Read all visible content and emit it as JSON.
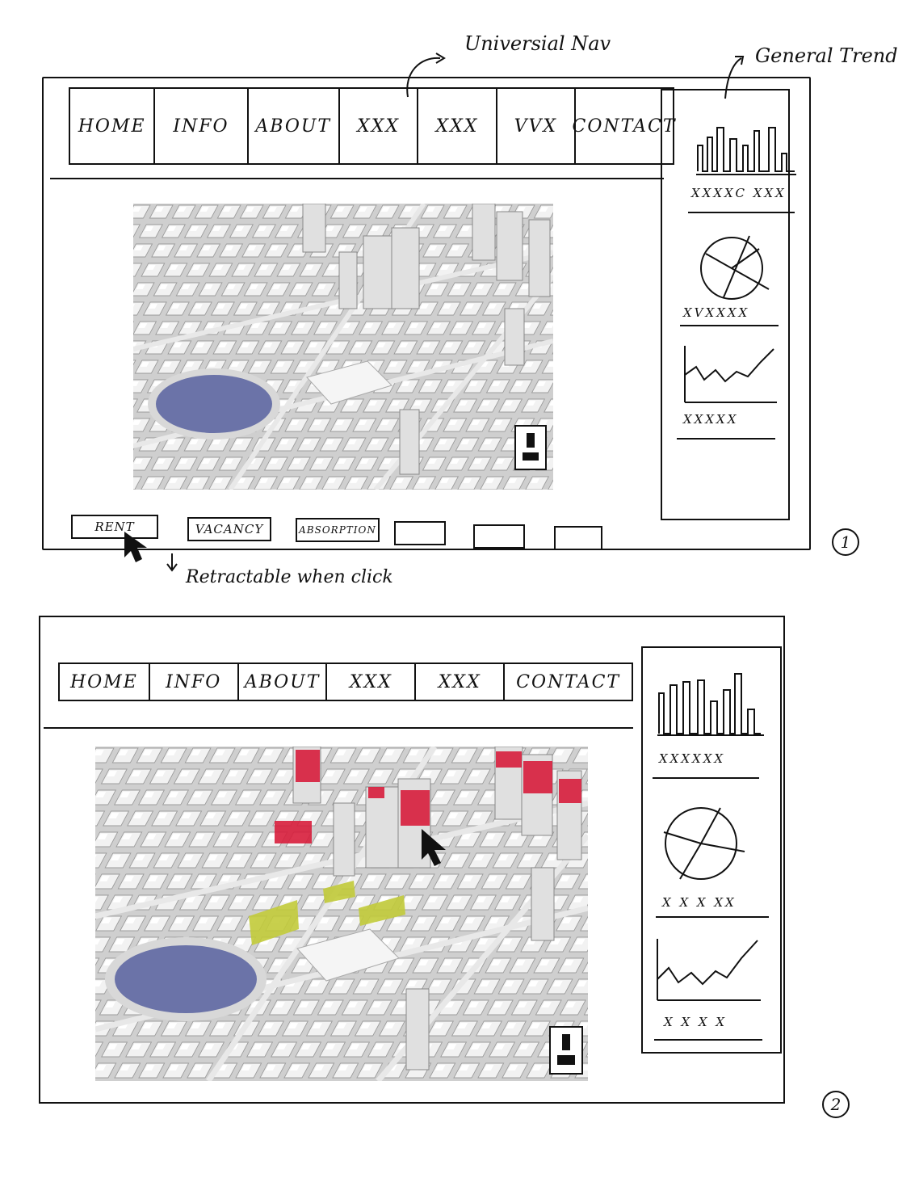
{
  "annotations": {
    "universal_nav": "Universial Nav",
    "general_trend": "General Trend",
    "retractable": "Retractable when click"
  },
  "sketch1": {
    "nav": [
      "HOME",
      "INFO",
      "ABOUT",
      "XXX",
      "XXX",
      "VVX",
      "CONTACT"
    ],
    "tabs": [
      "RENT",
      "VACANCY",
      "ABSORPTION",
      "",
      "",
      ""
    ],
    "trend_labels": [
      "XXXXC  XXX",
      "XVXXXX",
      "XXXXX"
    ],
    "page_number": "1"
  },
  "sketch2": {
    "nav": [
      "HOME",
      "INFO",
      "ABOUT",
      "XXX",
      "XXX",
      "CONTACT"
    ],
    "trend_labels": [
      "XXXXXX",
      "X X X XX",
      "X X X X"
    ],
    "page_number": "2"
  },
  "colors": {
    "ink": "#111111",
    "lake": "#6b73a8",
    "highlight_red": "#d81e3c",
    "highlight_yellow": "#c2cb3a"
  }
}
